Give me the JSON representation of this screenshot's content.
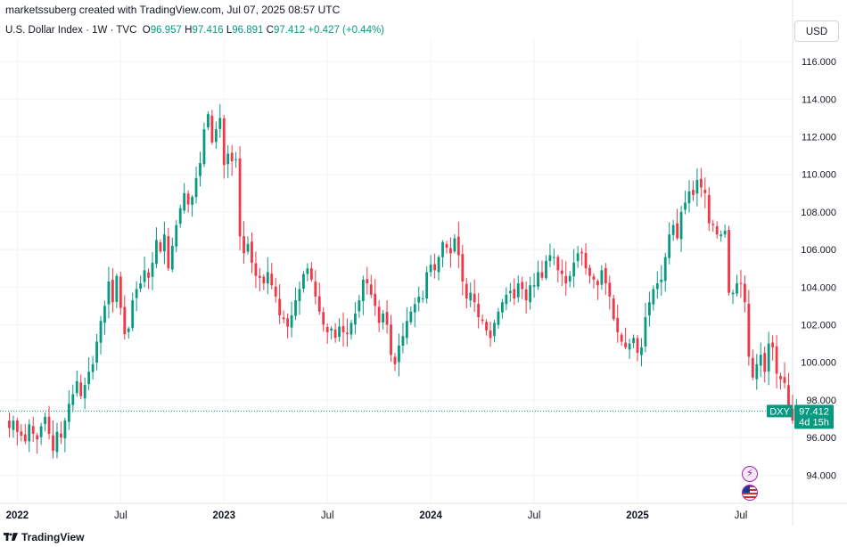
{
  "caption": "marketssuberg created with TradingView.com, Jul 07, 2025 08:57 UTC",
  "legend": {
    "name": "U.S. Dollar Index · 1W · TVC",
    "o_label": "O",
    "o": "96.957",
    "h_label": "H",
    "h": "97.416",
    "l_label": "L",
    "l": "96.891",
    "c_label": "C",
    "c": "97.412",
    "change": "+0.427 (+0.44%)"
  },
  "currency": "USD",
  "footer_brand": "TradingView",
  "colors": {
    "up": "#089981",
    "down": "#f23645",
    "accent": "#089981",
    "grid": "#f0f3fa"
  },
  "icons": [
    "lightning-icon",
    "us-flag-icon",
    "tradingview-logo-icon"
  ],
  "chart_data": {
    "type": "candlestick",
    "symbol_tag": "DXY",
    "last_price": "97.412",
    "countdown": "4d 15h",
    "y_ticks": [
      "94.000",
      "96.000",
      "98.000",
      "100.000",
      "102.000",
      "104.000",
      "106.000",
      "108.000",
      "110.000",
      "112.000",
      "114.000",
      "116.000"
    ],
    "y_range": [
      92.5,
      117.0
    ],
    "x_range_weeks": [
      0,
      196
    ],
    "x_ticks": [
      {
        "label": "2022",
        "week": 3,
        "bold": true
      },
      {
        "label": "Jul",
        "week": 29,
        "bold": false
      },
      {
        "label": "2023",
        "week": 55,
        "bold": true
      },
      {
        "label": "Jul",
        "week": 81,
        "bold": false
      },
      {
        "label": "2024",
        "week": 107,
        "bold": true
      },
      {
        "label": "Jul",
        "week": 133,
        "bold": false
      },
      {
        "label": "2025",
        "week": 159,
        "bold": true
      },
      {
        "label": "Jul",
        "week": 185,
        "bold": false
      }
    ],
    "closes": [
      96.5,
      96.9,
      96.3,
      96.1,
      95.8,
      96.7,
      96.2,
      95.9,
      96.6,
      97.1,
      96.2,
      95.3,
      96.3,
      96.0,
      96.9,
      97.8,
      98.3,
      99.0,
      98.2,
      98.8,
      99.5,
      99.9,
      101.1,
      102.2,
      103.0,
      104.3,
      103.2,
      104.6,
      102.9,
      101.5,
      101.8,
      103.3,
      103.9,
      104.2,
      104.9,
      104.5,
      105.3,
      106.5,
      105.9,
      106.8,
      105.0,
      106.2,
      107.3,
      108.2,
      109.0,
      108.4,
      108.8,
      109.8,
      110.6,
      112.4,
      113.2,
      111.7,
      112.4,
      113.0,
      110.5,
      111.1,
      110.7,
      110.8,
      106.7,
      105.8,
      106.3,
      105.3,
      104.6,
      104.5,
      104.2,
      104.8,
      104.1,
      103.5,
      102.5,
      102.3,
      101.9,
      102.5,
      103.3,
      103.9,
      104.7,
      105.0,
      104.4,
      103.5,
      102.7,
      102.0,
      101.6,
      101.8,
      101.3,
      101.9,
      101.6,
      101.5,
      102.1,
      102.6,
      103.3,
      104.4,
      104.2,
      103.6,
      103.0,
      102.1,
      102.6,
      102.0,
      100.4,
      99.9,
      100.9,
      101.4,
      102.2,
      102.7,
      103.1,
      103.5,
      103.4,
      104.8,
      105.2,
      104.9,
      105.6,
      106.4,
      106.1,
      105.8,
      106.6,
      105.7,
      104.3,
      103.4,
      103.7,
      103.2,
      102.4,
      102.2,
      101.7,
      101.3,
      102.1,
      102.7,
      103.2,
      103.6,
      103.8,
      103.4,
      104.2,
      103.9,
      103.3,
      104.1,
      104.1,
      104.8,
      104.5,
      105.4,
      105.7,
      105.6,
      104.9,
      104.7,
      104.2,
      104.6,
      105.3,
      105.8,
      105.8,
      105.0,
      104.6,
      104.4,
      104.1,
      104.9,
      104.2,
      103.5,
      102.3,
      101.6,
      101.1,
      100.8,
      101.0,
      101.3,
      100.5,
      100.8,
      102.4,
      103.2,
      103.9,
      104.2,
      104.4,
      105.6,
      106.8,
      107.3,
      106.6,
      108.0,
      108.5,
      109.1,
      108.9,
      109.7,
      109.3,
      109.0,
      107.4,
      107.3,
      106.8,
      106.8,
      107.0,
      103.7,
      103.7,
      104.2,
      104.2,
      103.2,
      100.3,
      99.2,
      99.9,
      100.4,
      99.5,
      101.0,
      100.8,
      99.4,
      99.1,
      98.9,
      97.5,
      96.9,
      97.4
    ]
  }
}
